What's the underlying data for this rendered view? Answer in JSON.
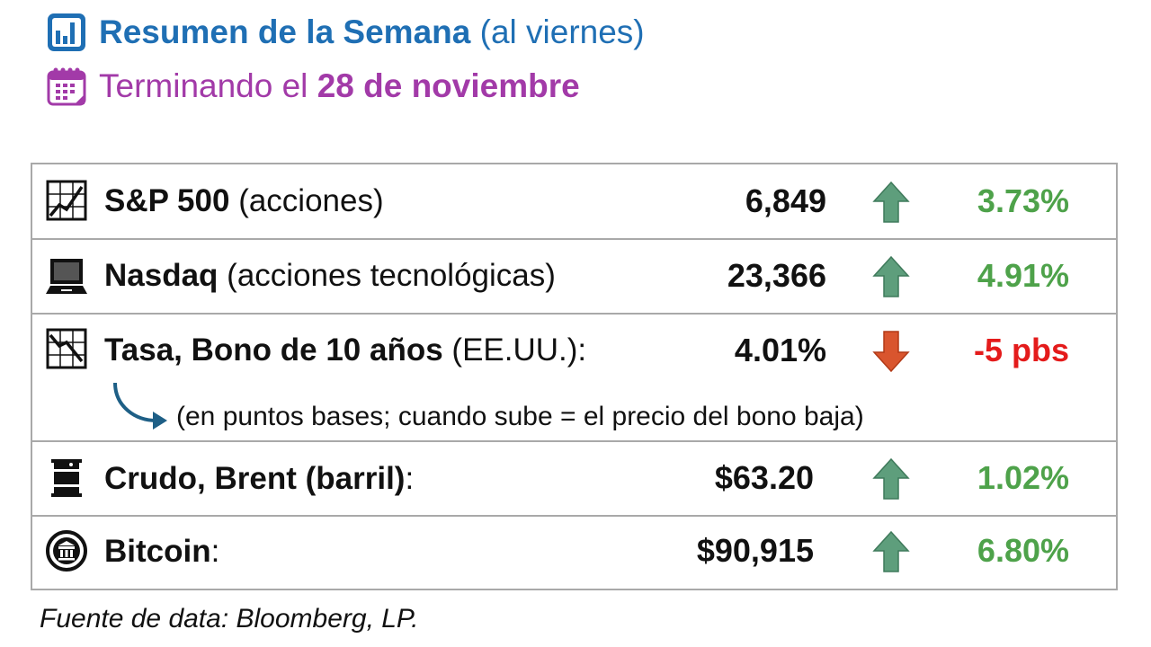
{
  "header": {
    "title_bold": "Resumen de la Semana",
    "title_rest": "(al viernes)",
    "subtitle_prefix": "Terminando el",
    "subtitle_bold": "28 de noviembre",
    "title_color": "#1f6fb4",
    "subtitle_color": "#a23aa8",
    "title_icon": "bar-chart-icon",
    "subtitle_icon": "calendar-icon"
  },
  "rows": [
    {
      "icon": "line-chart-icon",
      "name": "S&P 500",
      "desc": "(acciones)",
      "value": "6,849",
      "direction": "up",
      "change": "3.73%"
    },
    {
      "icon": "laptop-icon",
      "name": "Nasdaq",
      "desc": "(acciones tecnológicas)",
      "value": "23,366",
      "direction": "up",
      "change": "4.91%"
    },
    {
      "icon": "declining-chart-icon",
      "name": "Tasa, Bono de 10 años",
      "desc": "(EE.UU.):",
      "value": "4.01%",
      "direction": "down",
      "change": "-5 pbs",
      "note": "(en puntos bases; cuando sube = el precio del bono baja)"
    },
    {
      "icon": "oil-barrel-icon",
      "name": "Crudo, Brent (barril)",
      "desc": ":",
      "value": "$63.20",
      "direction": "up",
      "change": "1.02%"
    },
    {
      "icon": "bitcoin-coin-icon",
      "name": "Bitcoin",
      "desc": ":",
      "value": "$90,915",
      "direction": "up",
      "change": "6.80%"
    }
  ],
  "colors": {
    "up": "#4ea24a",
    "down": "#e41b1b",
    "up_arrow": "#5e9e7c",
    "down_arrow": "#d9552e",
    "border": "#a9a9a9"
  },
  "source": "Fuente de data: Bloomberg, LP."
}
